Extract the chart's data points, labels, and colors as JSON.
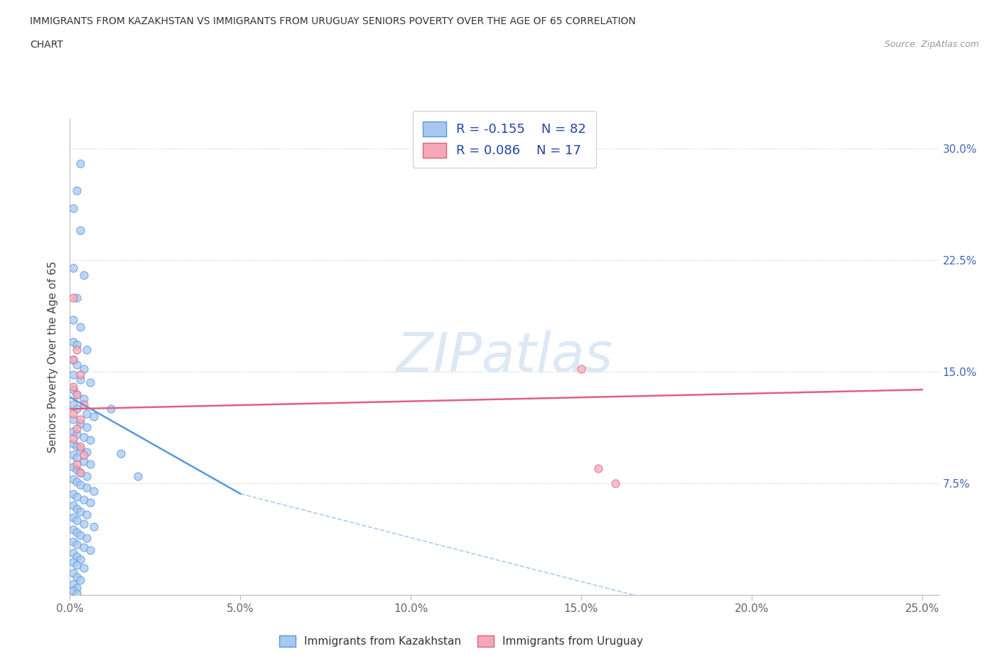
{
  "title_line1": "IMMIGRANTS FROM KAZAKHSTAN VS IMMIGRANTS FROM URUGUAY SENIORS POVERTY OVER THE AGE OF 65 CORRELATION",
  "title_line2": "CHART",
  "source_text": "Source: ZipAtlas.com",
  "ylabel": "Seniors Poverty Over the Age of 65",
  "x_tick_labels": [
    "0.0%",
    "5.0%",
    "10.0%",
    "15.0%",
    "20.0%",
    "25.0%"
  ],
  "x_ticks": [
    0.0,
    0.05,
    0.1,
    0.15,
    0.2,
    0.25
  ],
  "y_tick_labels_right": [
    "7.5%",
    "15.0%",
    "22.5%",
    "30.0%"
  ],
  "y_ticks_right": [
    0.075,
    0.15,
    0.225,
    0.3
  ],
  "xlim": [
    0.0,
    0.255
  ],
  "ylim": [
    0.0,
    0.32
  ],
  "kaz_R": -0.155,
  "kaz_N": 82,
  "ury_R": 0.086,
  "ury_N": 17,
  "kaz_color": "#a8c8f0",
  "ury_color": "#f5a8b8",
  "kaz_line_color": "#5599dd",
  "ury_line_color": "#e06080",
  "watermark": "ZIPatlas",
  "kaz_scatter": [
    [
      0.003,
      0.29
    ],
    [
      0.002,
      0.272
    ],
    [
      0.001,
      0.26
    ],
    [
      0.003,
      0.245
    ],
    [
      0.001,
      0.22
    ],
    [
      0.004,
      0.215
    ],
    [
      0.002,
      0.2
    ],
    [
      0.001,
      0.185
    ],
    [
      0.003,
      0.18
    ],
    [
      0.001,
      0.17
    ],
    [
      0.002,
      0.168
    ],
    [
      0.005,
      0.165
    ],
    [
      0.001,
      0.158
    ],
    [
      0.002,
      0.155
    ],
    [
      0.004,
      0.152
    ],
    [
      0.001,
      0.148
    ],
    [
      0.003,
      0.145
    ],
    [
      0.006,
      0.143
    ],
    [
      0.001,
      0.138
    ],
    [
      0.002,
      0.135
    ],
    [
      0.004,
      0.132
    ],
    [
      0.001,
      0.128
    ],
    [
      0.002,
      0.125
    ],
    [
      0.005,
      0.122
    ],
    [
      0.007,
      0.12
    ],
    [
      0.001,
      0.118
    ],
    [
      0.003,
      0.115
    ],
    [
      0.005,
      0.113
    ],
    [
      0.001,
      0.11
    ],
    [
      0.002,
      0.108
    ],
    [
      0.004,
      0.106
    ],
    [
      0.006,
      0.104
    ],
    [
      0.001,
      0.102
    ],
    [
      0.002,
      0.1
    ],
    [
      0.003,
      0.098
    ],
    [
      0.005,
      0.096
    ],
    [
      0.001,
      0.094
    ],
    [
      0.002,
      0.092
    ],
    [
      0.004,
      0.09
    ],
    [
      0.006,
      0.088
    ],
    [
      0.001,
      0.086
    ],
    [
      0.002,
      0.084
    ],
    [
      0.003,
      0.082
    ],
    [
      0.005,
      0.08
    ],
    [
      0.001,
      0.078
    ],
    [
      0.002,
      0.076
    ],
    [
      0.003,
      0.074
    ],
    [
      0.005,
      0.072
    ],
    [
      0.007,
      0.07
    ],
    [
      0.001,
      0.068
    ],
    [
      0.002,
      0.066
    ],
    [
      0.004,
      0.064
    ],
    [
      0.006,
      0.062
    ],
    [
      0.001,
      0.06
    ],
    [
      0.002,
      0.058
    ],
    [
      0.003,
      0.056
    ],
    [
      0.005,
      0.054
    ],
    [
      0.001,
      0.052
    ],
    [
      0.002,
      0.05
    ],
    [
      0.004,
      0.048
    ],
    [
      0.007,
      0.046
    ],
    [
      0.001,
      0.044
    ],
    [
      0.002,
      0.042
    ],
    [
      0.003,
      0.04
    ],
    [
      0.005,
      0.038
    ],
    [
      0.001,
      0.036
    ],
    [
      0.002,
      0.034
    ],
    [
      0.004,
      0.032
    ],
    [
      0.006,
      0.03
    ],
    [
      0.001,
      0.028
    ],
    [
      0.002,
      0.026
    ],
    [
      0.003,
      0.024
    ],
    [
      0.001,
      0.022
    ],
    [
      0.002,
      0.02
    ],
    [
      0.004,
      0.018
    ],
    [
      0.001,
      0.015
    ],
    [
      0.002,
      0.012
    ],
    [
      0.003,
      0.01
    ],
    [
      0.001,
      0.007
    ],
    [
      0.002,
      0.005
    ],
    [
      0.001,
      0.003
    ],
    [
      0.002,
      0.001
    ],
    [
      0.012,
      0.125
    ],
    [
      0.015,
      0.095
    ],
    [
      0.02,
      0.08
    ]
  ],
  "ury_scatter": [
    [
      0.001,
      0.2
    ],
    [
      0.002,
      0.165
    ],
    [
      0.001,
      0.158
    ],
    [
      0.003,
      0.148
    ],
    [
      0.001,
      0.14
    ],
    [
      0.002,
      0.135
    ],
    [
      0.004,
      0.128
    ],
    [
      0.001,
      0.122
    ],
    [
      0.003,
      0.118
    ],
    [
      0.002,
      0.112
    ],
    [
      0.001,
      0.105
    ],
    [
      0.003,
      0.1
    ],
    [
      0.004,
      0.094
    ],
    [
      0.002,
      0.088
    ],
    [
      0.003,
      0.082
    ],
    [
      0.15,
      0.152
    ],
    [
      0.155,
      0.085
    ],
    [
      0.16,
      0.075
    ]
  ],
  "kaz_trend": [
    0.0,
    0.133,
    0.05,
    0.068
  ],
  "kaz_dash": [
    0.05,
    0.068,
    0.25,
    -0.05
  ],
  "ury_trend": [
    0.0,
    0.125,
    0.25,
    0.138
  ]
}
